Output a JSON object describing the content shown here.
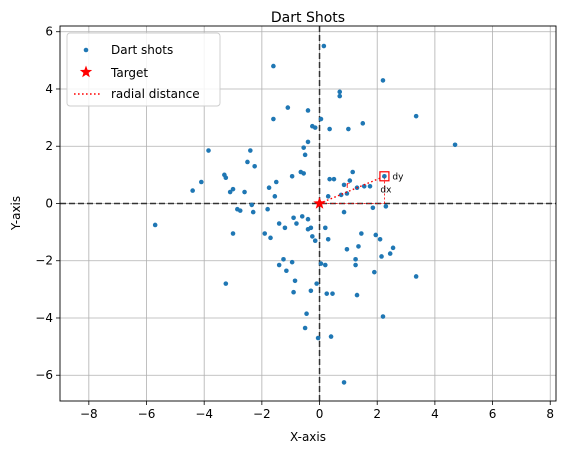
{
  "chart_data": {
    "type": "scatter",
    "title": "Dart Shots",
    "xlabel": "X-axis",
    "ylabel": "Y-axis",
    "xlim": [
      -9,
      8.2
    ],
    "ylim": [
      -6.9,
      6.2
    ],
    "xticks": [
      -8,
      -6,
      -4,
      -2,
      0,
      2,
      4,
      6,
      8
    ],
    "yticks": [
      -6,
      -4,
      -2,
      0,
      2,
      4,
      6
    ],
    "grid": true,
    "legend_position": "upper-left",
    "reference_lines": [
      {
        "orientation": "vertical",
        "value": 0,
        "style": "dashed"
      },
      {
        "orientation": "horizontal",
        "value": 0,
        "style": "dashed"
      }
    ],
    "series": [
      {
        "name": "Dart shots",
        "color": "#1f77b4",
        "points": [
          [
            0.15,
            5.5
          ],
          [
            -1.6,
            4.8
          ],
          [
            2.2,
            4.3
          ],
          [
            0.7,
            3.9
          ],
          [
            0.7,
            3.75
          ],
          [
            3.35,
            3.05
          ],
          [
            -1.1,
            3.35
          ],
          [
            -0.4,
            3.25
          ],
          [
            0.05,
            2.95
          ],
          [
            -1.6,
            2.95
          ],
          [
            1.5,
            2.8
          ],
          [
            -0.25,
            2.7
          ],
          [
            -0.15,
            2.65
          ],
          [
            1.0,
            2.6
          ],
          [
            0.35,
            2.6
          ],
          [
            4.7,
            2.05
          ],
          [
            -0.4,
            2.15
          ],
          [
            -0.55,
            1.95
          ],
          [
            -0.5,
            1.7
          ],
          [
            -3.85,
            1.85
          ],
          [
            -2.4,
            1.85
          ],
          [
            -2.5,
            1.45
          ],
          [
            -2.25,
            1.3
          ],
          [
            -0.65,
            1.1
          ],
          [
            -0.55,
            1.05
          ],
          [
            -0.95,
            0.95
          ],
          [
            1.15,
            1.1
          ],
          [
            1.05,
            0.8
          ],
          [
            0.5,
            0.85
          ],
          [
            0.35,
            0.85
          ],
          [
            -3.3,
            1.0
          ],
          [
            -3.25,
            0.9
          ],
          [
            -1.5,
            0.75
          ],
          [
            -4.1,
            0.75
          ],
          [
            -1.75,
            0.55
          ],
          [
            1.3,
            0.55
          ],
          [
            -3.0,
            0.5
          ],
          [
            -3.1,
            0.4
          ],
          [
            -2.6,
            0.4
          ],
          [
            -4.4,
            0.45
          ],
          [
            1.55,
            0.6
          ],
          [
            0.85,
            0.65
          ],
          [
            1.75,
            0.6
          ],
          [
            0.95,
            0.35
          ],
          [
            0.75,
            0.3
          ],
          [
            -1.55,
            0.25
          ],
          [
            0.3,
            0.25
          ],
          [
            -2.35,
            -0.05
          ],
          [
            -2.85,
            -0.2
          ],
          [
            -2.75,
            -0.25
          ],
          [
            -2.3,
            -0.3
          ],
          [
            -1.8,
            -0.2
          ],
          [
            1.85,
            -0.15
          ],
          [
            0.85,
            -0.3
          ],
          [
            2.3,
            -0.1
          ],
          [
            -0.9,
            -0.5
          ],
          [
            -0.6,
            -0.45
          ],
          [
            -0.4,
            -0.55
          ],
          [
            -1.4,
            -0.7
          ],
          [
            -0.8,
            -0.7
          ],
          [
            -1.2,
            -0.85
          ],
          [
            -0.4,
            -0.9
          ],
          [
            -0.3,
            -0.85
          ],
          [
            0.2,
            -0.85
          ],
          [
            -3.0,
            -1.05
          ],
          [
            -1.9,
            -1.05
          ],
          [
            -1.7,
            -1.2
          ],
          [
            -0.25,
            -1.15
          ],
          [
            -0.15,
            -1.3
          ],
          [
            0.3,
            -1.25
          ],
          [
            1.45,
            -1.05
          ],
          [
            1.95,
            -1.1
          ],
          [
            2.1,
            -1.25
          ],
          [
            1.35,
            -1.5
          ],
          [
            0.95,
            -1.6
          ],
          [
            2.55,
            -1.55
          ],
          [
            2.45,
            -1.75
          ],
          [
            2.15,
            -1.85
          ],
          [
            -1.25,
            -1.95
          ],
          [
            -0.95,
            -2.05
          ],
          [
            1.25,
            -1.95
          ],
          [
            0.05,
            -2.1
          ],
          [
            0.2,
            -2.15
          ],
          [
            -1.4,
            -2.15
          ],
          [
            -1.15,
            -2.35
          ],
          [
            1.25,
            -2.15
          ],
          [
            1.9,
            -2.4
          ],
          [
            3.35,
            -2.55
          ],
          [
            -0.85,
            -2.7
          ],
          [
            -0.1,
            -2.8
          ],
          [
            -3.25,
            -2.8
          ],
          [
            -0.9,
            -3.1
          ],
          [
            0.25,
            -3.15
          ],
          [
            0.45,
            -3.15
          ],
          [
            1.3,
            -3.2
          ],
          [
            -0.3,
            -3.05
          ],
          [
            -0.45,
            -3.85
          ],
          [
            2.2,
            -3.95
          ],
          [
            -0.5,
            -4.35
          ],
          [
            0.4,
            -4.65
          ],
          [
            -0.05,
            -4.7
          ],
          [
            -5.7,
            -0.75
          ],
          [
            0.85,
            -6.25
          ]
        ]
      },
      {
        "name": "Target",
        "color": "#ff0000",
        "marker": "star",
        "points": [
          [
            0,
            0
          ]
        ]
      }
    ],
    "annotation": {
      "line_label": "radial distance",
      "line_color": "#ff0000",
      "line_from": [
        0,
        0
      ],
      "line_to": [
        2.25,
        0.95
      ],
      "highlighted_point": [
        2.25,
        0.95
      ],
      "dx_label": "dx",
      "dy_label": "dy",
      "r_label": "r"
    }
  }
}
